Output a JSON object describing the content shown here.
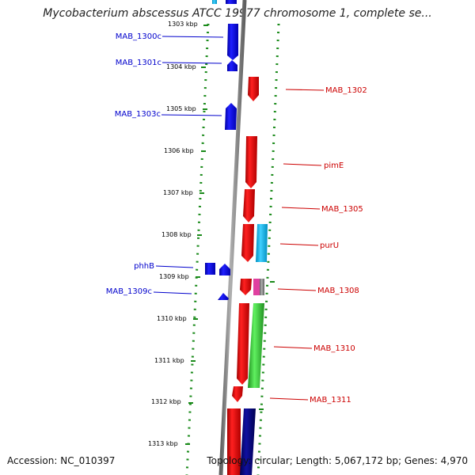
{
  "title": "Mycobacterium abscessus ATCC 19977 chromosome 1, complete se...",
  "ticks": [
    "1303 kbp",
    "1304 kbp",
    "1305 kbp",
    "1306 kbp",
    "1307 kbp",
    "1308 kbp",
    "1309 kbp",
    "1310 kbp",
    "1311 kbp",
    "1312 kbp",
    "1313 kbp"
  ],
  "genes": {
    "MAB_1300c": "MAB_1300c",
    "MAB_1301c": "MAB_1301c",
    "MAB_1302": "MAB_1302",
    "MAB_1303c": "MAB_1303c",
    "pimE": "pimE",
    "MAB_1305": "MAB_1305",
    "purU": "purU",
    "phhB": "phhB",
    "MAB_1308": "MAB_1308",
    "MAB_1309c": "MAB_1309c",
    "MAB_1310": "MAB_1310",
    "MAB_1311": "MAB_1311"
  },
  "footer": {
    "accession": "Accession: NC_010397",
    "summary": "Topology: circular; Length: 5,067,172 bp; Genes: 4,970"
  },
  "colors": {
    "forward": "#e00000",
    "reverse": "#0000e0",
    "rna": "#22bbee",
    "other": "#33cc33",
    "dark": "#000080",
    "dots": "#1a8a1a",
    "backbone": "#808080"
  }
}
